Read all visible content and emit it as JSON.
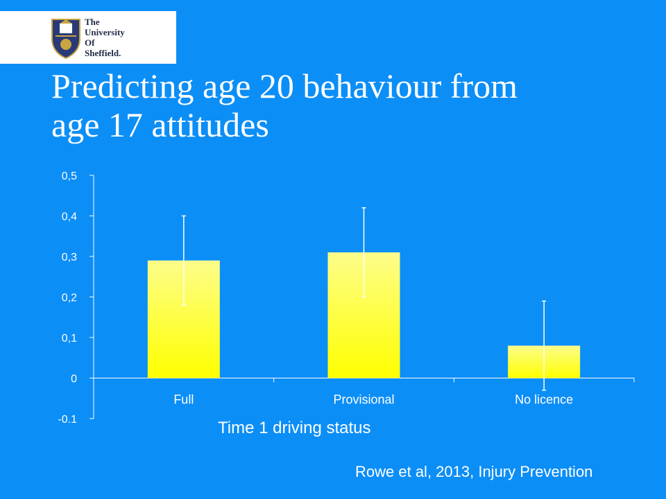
{
  "logo": {
    "lines": [
      "The",
      "University",
      "Of",
      "Sheffield."
    ],
    "icon": "university-crest-icon"
  },
  "title": {
    "line1": "Predicting age 20 behaviour from",
    "line2": "age 17 attitudes"
  },
  "chart_data": {
    "type": "bar",
    "categories": [
      "Full",
      "Provisional",
      "No licence"
    ],
    "values": [
      0.29,
      0.31,
      0.08
    ],
    "error_bars": {
      "low": [
        0.18,
        0.2,
        -0.03
      ],
      "high": [
        0.4,
        0.42,
        0.19
      ]
    },
    "ylim": [
      -0.1,
      0.5
    ],
    "yticks": [
      0.5,
      0.4,
      0.3,
      0.2,
      0.1,
      0,
      -0.1
    ],
    "ytick_labels": [
      "0,5",
      "0,4",
      "0,3",
      "0,2",
      "0,1",
      "0",
      "-0,1"
    ],
    "xlabel": "Time 1 driving status",
    "ylabel": "",
    "bar_color_top": "#fdfd8a",
    "bar_color_bottom": "#ffff00",
    "grid": false,
    "legend": false
  },
  "citation": "Rowe et al, 2013, Injury Prevention",
  "colors": {
    "background": "#0c8ef7",
    "text": "#ffffff"
  }
}
